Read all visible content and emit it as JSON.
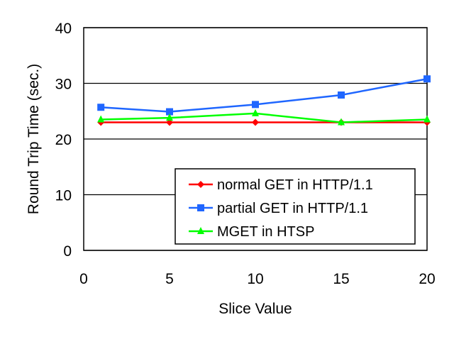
{
  "chart_data": {
    "type": "line",
    "title": "",
    "xlabel": "Slice Value",
    "ylabel": "Round Trip Time (sec.)",
    "xlim": [
      0,
      20
    ],
    "ylim": [
      0,
      40
    ],
    "xticks": [
      0,
      5,
      10,
      15,
      20
    ],
    "yticks": [
      0,
      10,
      20,
      30,
      40
    ],
    "grid": "horizontal",
    "legend_position": "bottom-right",
    "x": [
      1,
      5,
      10,
      15,
      20
    ],
    "series": [
      {
        "name": "normal GET in HTTP/1.1",
        "color": "#ff0000",
        "marker": "diamond",
        "values": [
          23.0,
          23.0,
          23.0,
          23.0,
          23.0
        ]
      },
      {
        "name": "partial GET in HTTP/1.1",
        "color": "#1f66ff",
        "marker": "square",
        "values": [
          25.7,
          24.9,
          26.2,
          27.9,
          30.8
        ]
      },
      {
        "name": "MGET in HTSP",
        "color": "#00ff00",
        "marker": "triangle",
        "values": [
          23.5,
          23.8,
          24.6,
          23.0,
          23.5
        ]
      }
    ]
  }
}
